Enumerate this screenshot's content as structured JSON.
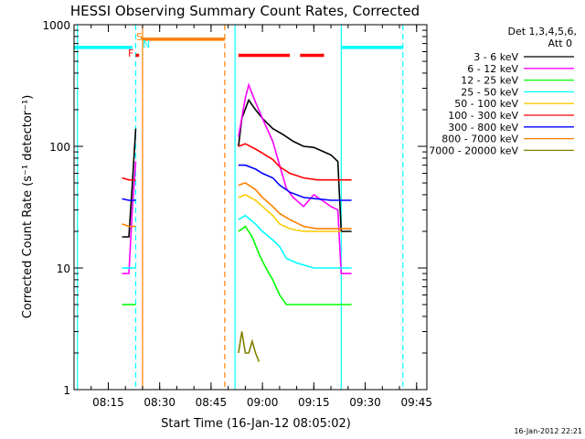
{
  "chart_data": {
    "type": "line",
    "title": "HESSI Observing Summary Count Rates, Corrected",
    "xlabel": "Start Time (16-Jan-12 08:05:02)",
    "ylabel": "Corrected Count Rate (s⁻¹ detector⁻¹)",
    "y_scale": "log",
    "ylim": [
      1,
      1000
    ],
    "xlim": [
      "08:05",
      "09:48"
    ],
    "x_ticks": [
      "08:15",
      "08:30",
      "08:45",
      "09:00",
      "09:15",
      "09:30",
      "09:45"
    ],
    "y_ticks": [
      "1",
      "10",
      "100",
      "1000"
    ],
    "legend_title": [
      "Det 1,3,4,5,6,",
      "Att 0"
    ],
    "legend_position": "right",
    "timestamp": "16-Jan-2012 22:21",
    "flag_labels": {
      "F": "F",
      "S": "S",
      "N": "N"
    },
    "series": [
      {
        "name": "3 - 6 keV",
        "color": "#000000",
        "points": [
          [
            "08:19",
            18
          ],
          [
            "08:21",
            18
          ],
          [
            "08:22",
            48
          ],
          [
            "08:23",
            140
          ],
          [
            "08:53",
            100
          ],
          [
            "08:54",
            170
          ],
          [
            "08:56",
            240
          ],
          [
            "08:58",
            200
          ],
          [
            "09:00",
            170
          ],
          [
            "09:03",
            140
          ],
          [
            "09:06",
            125
          ],
          [
            "09:09",
            110
          ],
          [
            "09:12",
            100
          ],
          [
            "09:15",
            98
          ],
          [
            "09:18",
            90
          ],
          [
            "09:20",
            85
          ],
          [
            "09:22",
            75
          ],
          [
            "09:23",
            20
          ],
          [
            "09:26",
            20
          ]
        ]
      },
      {
        "name": "6 - 12 keV",
        "color": "#ff00ff",
        "points": [
          [
            "08:19",
            9
          ],
          [
            "08:21",
            9
          ],
          [
            "08:22",
            30
          ],
          [
            "08:23",
            75
          ],
          [
            "08:53",
            120
          ],
          [
            "08:55",
            250
          ],
          [
            "08:56",
            320
          ],
          [
            "08:57",
            270
          ],
          [
            "08:58",
            230
          ],
          [
            "09:00",
            170
          ],
          [
            "09:03",
            110
          ],
          [
            "09:05",
            70
          ],
          [
            "09:07",
            45
          ],
          [
            "09:09",
            38
          ],
          [
            "09:12",
            32
          ],
          [
            "09:15",
            40
          ],
          [
            "09:18",
            35
          ],
          [
            "09:20",
            32
          ],
          [
            "09:22",
            30
          ],
          [
            "09:23",
            9
          ],
          [
            "09:26",
            9
          ]
        ]
      },
      {
        "name": "12 - 25 keV",
        "color": "#00ff00",
        "points": [
          [
            "08:19",
            5
          ],
          [
            "08:21",
            5
          ],
          [
            "08:22",
            5
          ],
          [
            "08:23",
            5
          ],
          [
            "08:53",
            20
          ],
          [
            "08:55",
            22
          ],
          [
            "08:57",
            18
          ],
          [
            "08:59",
            13
          ],
          [
            "09:01",
            10
          ],
          [
            "09:03",
            8
          ],
          [
            "09:05",
            6
          ],
          [
            "09:07",
            5
          ],
          [
            "09:10",
            5
          ],
          [
            "09:15",
            5
          ],
          [
            "09:20",
            5
          ],
          [
            "09:22",
            5
          ],
          [
            "09:23",
            5
          ],
          [
            "09:26",
            5
          ]
        ]
      },
      {
        "name": "25 - 50 keV",
        "color": "#00ffff",
        "points": [
          [
            "08:19",
            10
          ],
          [
            "08:21",
            10
          ],
          [
            "08:22",
            10
          ],
          [
            "08:23",
            10
          ],
          [
            "08:53",
            25
          ],
          [
            "08:55",
            27
          ],
          [
            "08:58",
            23
          ],
          [
            "09:00",
            20
          ],
          [
            "09:03",
            17
          ],
          [
            "09:05",
            15
          ],
          [
            "09:07",
            12
          ],
          [
            "09:10",
            11
          ],
          [
            "09:15",
            10
          ],
          [
            "09:20",
            10
          ],
          [
            "09:22",
            10
          ],
          [
            "09:23",
            10
          ],
          [
            "09:26",
            10
          ]
        ]
      },
      {
        "name": "50 - 100 keV",
        "color": "#ffcc00",
        "points": [
          [
            "08:53",
            38
          ],
          [
            "08:55",
            40
          ],
          [
            "08:58",
            36
          ],
          [
            "09:00",
            32
          ],
          [
            "09:03",
            27
          ],
          [
            "09:05",
            23
          ],
          [
            "09:08",
            21
          ],
          [
            "09:12",
            20
          ],
          [
            "09:16",
            20
          ],
          [
            "09:20",
            20
          ],
          [
            "09:23",
            20
          ]
        ]
      },
      {
        "name": "100 - 300 keV",
        "color": "#ff0000",
        "points": [
          [
            "08:19",
            55
          ],
          [
            "08:21",
            53
          ],
          [
            "08:22",
            53
          ],
          [
            "08:23",
            53
          ],
          [
            "08:53",
            100
          ],
          [
            "08:55",
            105
          ],
          [
            "08:58",
            95
          ],
          [
            "09:00",
            88
          ],
          [
            "09:03",
            78
          ],
          [
            "09:05",
            68
          ],
          [
            "09:08",
            60
          ],
          [
            "09:12",
            55
          ],
          [
            "09:16",
            53
          ],
          [
            "09:20",
            53
          ],
          [
            "09:23",
            53
          ],
          [
            "09:26",
            53
          ]
        ]
      },
      {
        "name": "300 - 800 keV",
        "color": "#0000ff",
        "points": [
          [
            "08:19",
            37
          ],
          [
            "08:21",
            36
          ],
          [
            "08:22",
            36
          ],
          [
            "08:23",
            36
          ],
          [
            "08:53",
            70
          ],
          [
            "08:55",
            70
          ],
          [
            "08:58",
            65
          ],
          [
            "09:00",
            60
          ],
          [
            "09:03",
            55
          ],
          [
            "09:05",
            48
          ],
          [
            "09:08",
            42
          ],
          [
            "09:12",
            38
          ],
          [
            "09:16",
            37
          ],
          [
            "09:20",
            36
          ],
          [
            "09:23",
            36
          ],
          [
            "09:26",
            36
          ]
        ]
      },
      {
        "name": "800 - 7000 keV",
        "color": "#ff7f00",
        "points": [
          [
            "08:19",
            23
          ],
          [
            "08:21",
            22
          ],
          [
            "08:22",
            22
          ],
          [
            "08:23",
            22
          ],
          [
            "08:53",
            48
          ],
          [
            "08:55",
            50
          ],
          [
            "08:58",
            44
          ],
          [
            "09:00",
            38
          ],
          [
            "09:03",
            32
          ],
          [
            "09:05",
            28
          ],
          [
            "09:08",
            25
          ],
          [
            "09:12",
            22
          ],
          [
            "09:16",
            21
          ],
          [
            "09:20",
            21
          ],
          [
            "09:23",
            21
          ],
          [
            "09:26",
            21
          ]
        ]
      },
      {
        "name": "7000 - 20000 keV",
        "color": "#808000",
        "points": [
          [
            "08:53",
            2
          ],
          [
            "08:54",
            3
          ],
          [
            "08:55",
            2
          ],
          [
            "08:56",
            2
          ],
          [
            "08:57",
            2.5
          ],
          [
            "08:58",
            2
          ],
          [
            "08:59",
            1.7
          ]
        ]
      }
    ],
    "flag_bars": [
      {
        "color": "#00ffff",
        "y": 650,
        "segments": [
          [
            "08:05",
            "08:22"
          ],
          [
            "09:23",
            "09:41"
          ]
        ]
      },
      {
        "color": "#ff7f00",
        "y": 760,
        "segments": [
          [
            "08:25",
            "08:49"
          ]
        ]
      },
      {
        "color": "#ff0000",
        "y": 560,
        "segments": [
          [
            "08:23",
            "08:24"
          ],
          [
            "08:53",
            "09:08"
          ],
          [
            "09:11",
            "09:18"
          ]
        ]
      }
    ],
    "vertical_markers": [
      {
        "time": "08:23",
        "color": "#00ffff",
        "style": "dashed"
      },
      {
        "time": "08:25",
        "color": "#ff7f00",
        "style": "solid"
      },
      {
        "time": "08:49",
        "color": "#ff7f00",
        "style": "dashed"
      },
      {
        "time": "08:52",
        "color": "#00ffff",
        "style": "solid"
      },
      {
        "time": "09:23",
        "color": "#00ffff",
        "style": "solid"
      },
      {
        "time": "09:41",
        "color": "#00ffff",
        "style": "dashed"
      },
      {
        "time": "08:06",
        "color": "#00ffff",
        "style": "solid"
      }
    ]
  }
}
